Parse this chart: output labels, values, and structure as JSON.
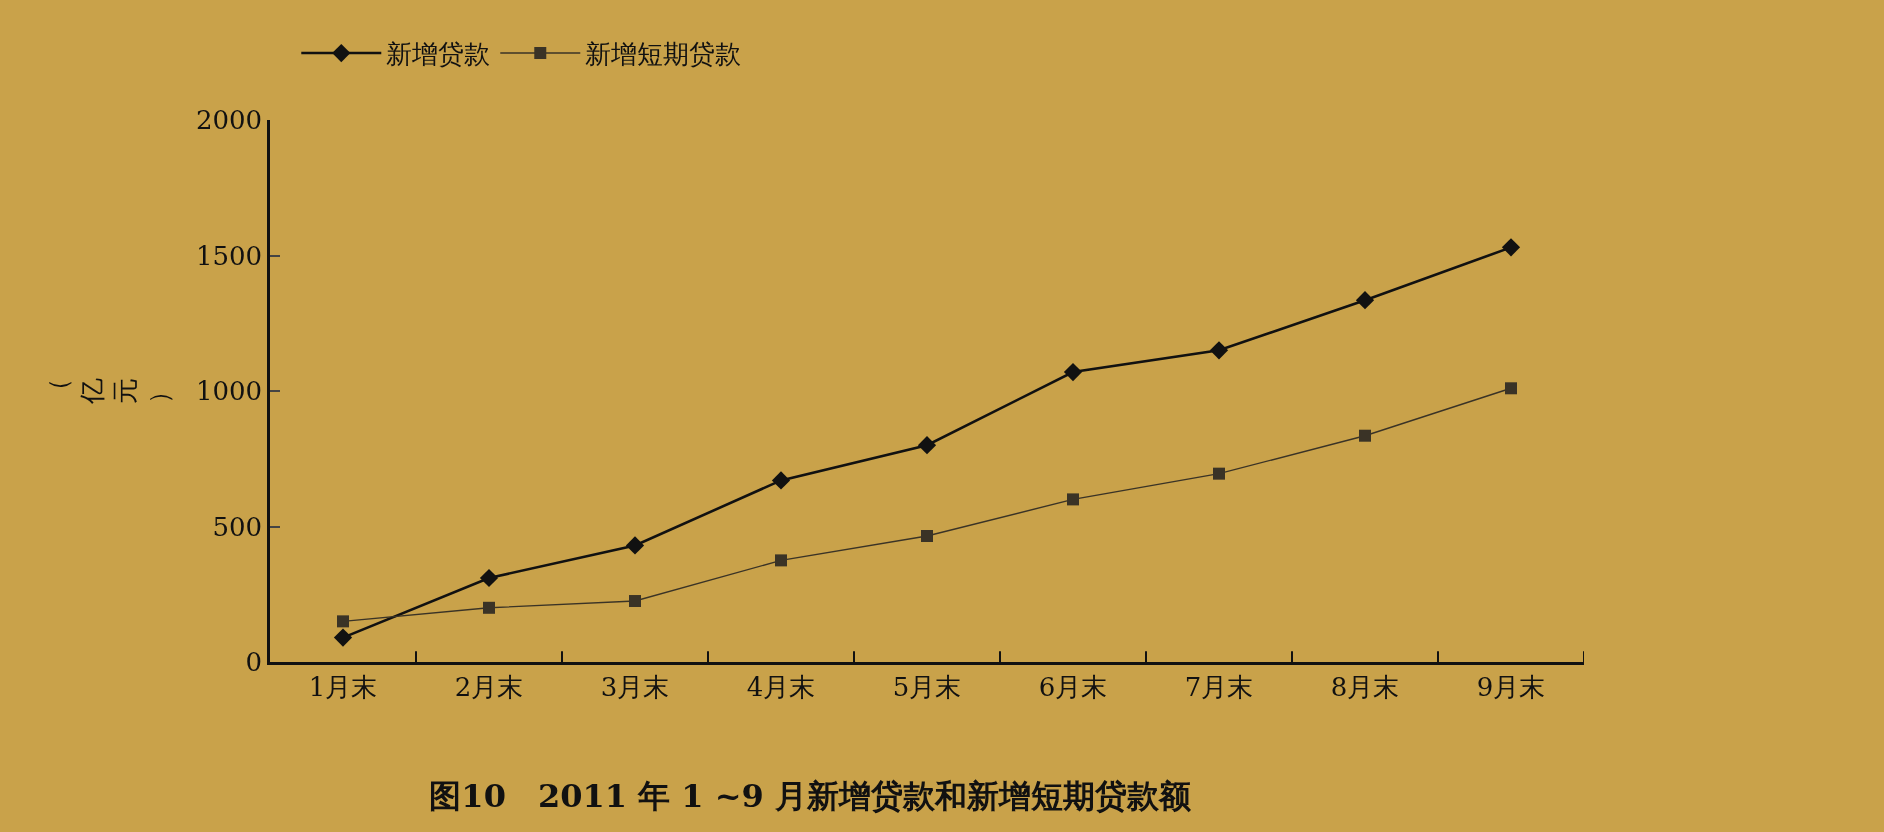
{
  "chart_data": {
    "type": "line",
    "title": "图10　2011 年 1 ~9 月新增贷款和新增短期贷款额",
    "ylabel": "（亿元）",
    "categories": [
      "1月末",
      "2月末",
      "3月末",
      "4月末",
      "5月末",
      "6月末",
      "7月末",
      "8月末",
      "9月末"
    ],
    "series": [
      {
        "name": "新增贷款",
        "color": "#111111",
        "marker": "diamond",
        "values": [
          90,
          310,
          430,
          670,
          800,
          1070,
          1150,
          1335,
          1530
        ]
      },
      {
        "name": "新增短期贷款",
        "color": "#3a3326",
        "marker": "square",
        "values": [
          150,
          200,
          225,
          375,
          465,
          600,
          695,
          835,
          1010
        ]
      }
    ],
    "ylim": [
      0,
      2000
    ],
    "yticks": [
      0,
      500,
      1000,
      1500,
      2000
    ],
    "grid": false,
    "legend": "top left",
    "line_style": "solid"
  }
}
